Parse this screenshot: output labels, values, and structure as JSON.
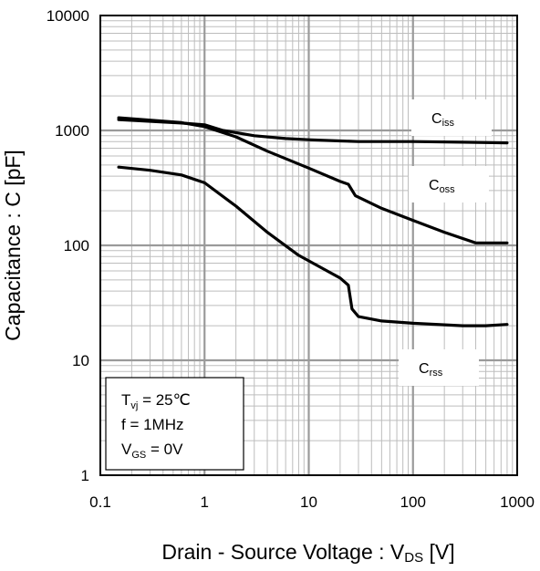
{
  "chart_data": {
    "type": "line",
    "x_scale": "log",
    "y_scale": "log",
    "xlim": [
      0.1,
      1000
    ],
    "ylim": [
      1,
      10000
    ],
    "grid": true,
    "xticks": [
      "0.1",
      "1",
      "10",
      "100",
      "1000"
    ],
    "yticks": [
      "1",
      "10",
      "100",
      "1000",
      "10000"
    ],
    "xlabel": {
      "main": "Drain - Source Voltage : V",
      "sub": "DS",
      "unit": " [V]"
    },
    "ylabel": "Capacitance : C [pF]",
    "conditions": [
      {
        "pre": "T",
        "sub": "vj",
        "post": " = 25℃"
      },
      {
        "pre": "f = 1MHz",
        "sub": "",
        "post": ""
      },
      {
        "pre": "V",
        "sub": "GS",
        "post": " = 0V"
      }
    ],
    "series": [
      {
        "name": "Ciss",
        "label_main": "C",
        "label_sub": "iss",
        "x": [
          0.15,
          0.3,
          0.6,
          1.0,
          1.5,
          3,
          6,
          10,
          20,
          30,
          100,
          300,
          800
        ],
        "y": [
          1240,
          1200,
          1160,
          1120,
          1000,
          900,
          850,
          830,
          810,
          800,
          800,
          790,
          780
        ]
      },
      {
        "name": "Coss",
        "label_main": "C",
        "label_sub": "oss",
        "x": [
          0.15,
          0.3,
          0.6,
          1.0,
          2,
          4,
          10,
          20,
          24,
          28,
          50,
          100,
          200,
          400,
          800
        ],
        "y": [
          1290,
          1230,
          1170,
          1080,
          880,
          660,
          470,
          360,
          340,
          270,
          210,
          165,
          130,
          105,
          105
        ]
      },
      {
        "name": "Crss",
        "label_main": "C",
        "label_sub": "rss",
        "x": [
          0.15,
          0.3,
          0.6,
          1.0,
          2,
          4,
          8,
          15,
          20,
          24,
          26,
          30,
          50,
          100,
          300,
          500,
          800
        ],
        "y": [
          480,
          450,
          410,
          350,
          220,
          130,
          82,
          60,
          52,
          45,
          28,
          24,
          22,
          21,
          20,
          20,
          20.5
        ]
      }
    ]
  }
}
